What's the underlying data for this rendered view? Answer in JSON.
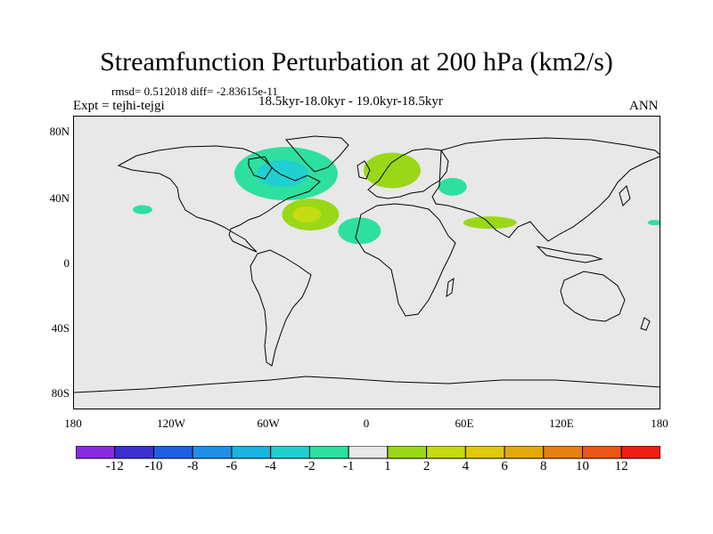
{
  "title": "Streamfunction Perturbation at 200 hPa (km2/s)",
  "stats": "rmsd= 0.512018 diff= -2.83615e-11",
  "period": "18.5kyr-18.0kyr - 19.0kyr-18.5kyr",
  "experiment": "Expt = tejhi-tejgi",
  "season": "ANN",
  "map": {
    "background_color": "#e8e8e8",
    "lat_ticks": [
      "80N",
      "40N",
      "0",
      "40S",
      "80S"
    ],
    "lon_ticks": [
      "180",
      "120W",
      "60W",
      "0",
      "60E",
      "120E",
      "180"
    ]
  },
  "anomalies": [
    {
      "name": "north-atlantic-low",
      "sign": "negative",
      "center": [
        -50,
        55
      ],
      "level": -2
    },
    {
      "name": "atlantic-high",
      "sign": "positive",
      "center": [
        -35,
        30
      ],
      "level": 4
    },
    {
      "name": "europe-high",
      "sign": "positive",
      "center": [
        15,
        57
      ],
      "level": 2
    },
    {
      "name": "west-africa-low",
      "sign": "negative",
      "center": [
        -5,
        20
      ],
      "level": -2
    },
    {
      "name": "caspian-low",
      "sign": "negative",
      "center": [
        52,
        47
      ],
      "level": -2
    },
    {
      "name": "south-asia-high",
      "sign": "positive",
      "center": [
        75,
        25
      ],
      "level": 2
    },
    {
      "name": "pacific-low",
      "sign": "negative",
      "center": [
        -138,
        33
      ],
      "level": -2
    },
    {
      "name": "east-pacific-low",
      "sign": "negative",
      "center": [
        176,
        25
      ],
      "level": -2
    }
  ],
  "colorbar": {
    "colors": [
      "#8a2be2",
      "#3b2fd0",
      "#1f5fe6",
      "#1e8fe8",
      "#19b4e0",
      "#20d0d0",
      "#2ee0a0",
      "#e8e8e8",
      "#9ad817",
      "#c4dc10",
      "#e0c80c",
      "#e4a80a",
      "#e88010",
      "#ec5514",
      "#f21c10"
    ],
    "labels": [
      "-12",
      "-10",
      "-8",
      "-6",
      "-4",
      "-2",
      "-1",
      "1",
      "2",
      "4",
      "6",
      "8",
      "10",
      "12"
    ]
  }
}
